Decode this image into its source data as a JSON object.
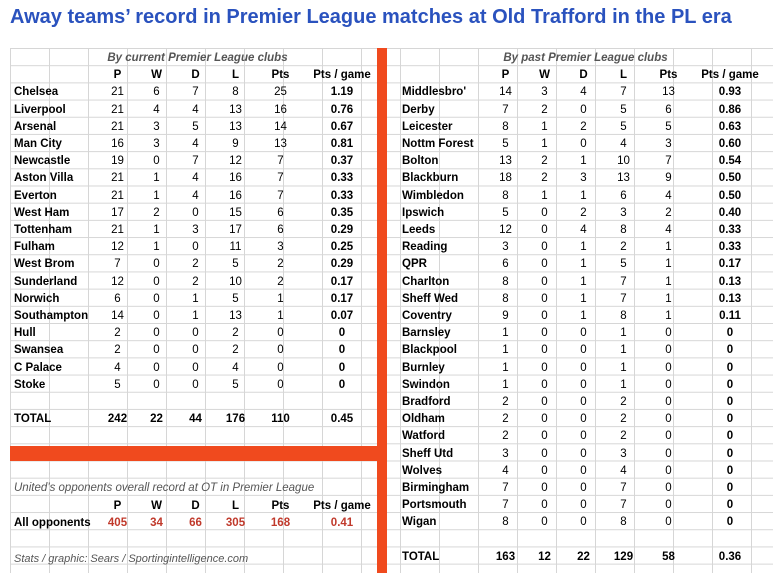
{
  "title": "Away teams’ record in Premier League matches at Old Trafford in the PL era",
  "headers": [
    "P",
    "W",
    "D",
    "L",
    "Pts",
    "Pts / game"
  ],
  "current": {
    "subtitle": "By current Premier League clubs",
    "rows": [
      [
        "Chelsea",
        "21",
        "6",
        "7",
        "8",
        "25",
        "1.19"
      ],
      [
        "Liverpool",
        "21",
        "4",
        "4",
        "13",
        "16",
        "0.76"
      ],
      [
        "Arsenal",
        "21",
        "3",
        "5",
        "13",
        "14",
        "0.67"
      ],
      [
        "Man City",
        "16",
        "3",
        "4",
        "9",
        "13",
        "0.81"
      ],
      [
        "Newcastle",
        "19",
        "0",
        "7",
        "12",
        "7",
        "0.37"
      ],
      [
        "Aston Villa",
        "21",
        "1",
        "4",
        "16",
        "7",
        "0.33"
      ],
      [
        "Everton",
        "21",
        "1",
        "4",
        "16",
        "7",
        "0.33"
      ],
      [
        "West Ham",
        "17",
        "2",
        "0",
        "15",
        "6",
        "0.35"
      ],
      [
        "Tottenham",
        "21",
        "1",
        "3",
        "17",
        "6",
        "0.29"
      ],
      [
        "Fulham",
        "12",
        "1",
        "0",
        "11",
        "3",
        "0.25"
      ],
      [
        "West Brom",
        "7",
        "0",
        "2",
        "5",
        "2",
        "0.29"
      ],
      [
        "Sunderland",
        "12",
        "0",
        "2",
        "10",
        "2",
        "0.17"
      ],
      [
        "Norwich",
        "6",
        "0",
        "1",
        "5",
        "1",
        "0.17"
      ],
      [
        "Southampton",
        "14",
        "0",
        "1",
        "13",
        "1",
        "0.07"
      ],
      [
        "Hull",
        "2",
        "0",
        "0",
        "2",
        "0",
        "0"
      ],
      [
        "Swansea",
        "2",
        "0",
        "0",
        "2",
        "0",
        "0"
      ],
      [
        "C Palace",
        "4",
        "0",
        "0",
        "4",
        "0",
        "0"
      ],
      [
        "Stoke",
        "5",
        "0",
        "0",
        "5",
        "0",
        "0"
      ]
    ],
    "total": [
      "TOTAL",
      "242",
      "22",
      "44",
      "176",
      "110",
      "0.45"
    ]
  },
  "past": {
    "subtitle": "By past Premier League clubs",
    "rows": [
      [
        "Middlesbro'",
        "14",
        "3",
        "4",
        "7",
        "13",
        "0.93"
      ],
      [
        "Derby",
        "7",
        "2",
        "0",
        "5",
        "6",
        "0.86"
      ],
      [
        "Leicester",
        "8",
        "1",
        "2",
        "5",
        "5",
        "0.63"
      ],
      [
        "Nottm Forest",
        "5",
        "1",
        "0",
        "4",
        "3",
        "0.60"
      ],
      [
        "Bolton",
        "13",
        "2",
        "1",
        "10",
        "7",
        "0.54"
      ],
      [
        "Blackburn",
        "18",
        "2",
        "3",
        "13",
        "9",
        "0.50"
      ],
      [
        "Wimbledon",
        "8",
        "1",
        "1",
        "6",
        "4",
        "0.50"
      ],
      [
        "Ipswich",
        "5",
        "0",
        "2",
        "3",
        "2",
        "0.40"
      ],
      [
        "Leeds",
        "12",
        "0",
        "4",
        "8",
        "4",
        "0.33"
      ],
      [
        "Reading",
        "3",
        "0",
        "1",
        "2",
        "1",
        "0.33"
      ],
      [
        "QPR",
        "6",
        "0",
        "1",
        "5",
        "1",
        "0.17"
      ],
      [
        "Charlton",
        "8",
        "0",
        "1",
        "7",
        "1",
        "0.13"
      ],
      [
        "Sheff Wed",
        "8",
        "0",
        "1",
        "7",
        "1",
        "0.13"
      ],
      [
        "Coventry",
        "9",
        "0",
        "1",
        "8",
        "1",
        "0.11"
      ],
      [
        "Barnsley",
        "1",
        "0",
        "0",
        "1",
        "0",
        "0"
      ],
      [
        "Blackpool",
        "1",
        "0",
        "0",
        "1",
        "0",
        "0"
      ],
      [
        "Burnley",
        "1",
        "0",
        "0",
        "1",
        "0",
        "0"
      ],
      [
        "Swindon",
        "1",
        "0",
        "0",
        "1",
        "0",
        "0"
      ],
      [
        "Bradford",
        "2",
        "0",
        "0",
        "2",
        "0",
        "0"
      ],
      [
        "Oldham",
        "2",
        "0",
        "0",
        "2",
        "0",
        "0"
      ],
      [
        "Watford",
        "2",
        "0",
        "0",
        "2",
        "0",
        "0"
      ],
      [
        "Sheff Utd",
        "3",
        "0",
        "0",
        "3",
        "0",
        "0"
      ],
      [
        "Wolves",
        "4",
        "0",
        "0",
        "4",
        "0",
        "0"
      ],
      [
        "Birmingham",
        "7",
        "0",
        "0",
        "7",
        "0",
        "0"
      ],
      [
        "Portsmouth",
        "7",
        "0",
        "0",
        "7",
        "0",
        "0"
      ],
      [
        "Wigan",
        "8",
        "0",
        "0",
        "8",
        "0",
        "0"
      ]
    ],
    "total": [
      "TOTAL",
      "163",
      "12",
      "22",
      "129",
      "58",
      "0.36"
    ]
  },
  "opponents": {
    "subtitle": "United’s opponents overall record at OT in Premier League",
    "row": [
      "All opponents",
      "405",
      "34",
      "66",
      "305",
      "168",
      "0.41"
    ]
  },
  "credit": "Stats / graphic: Sears / Sportingintelligence.com"
}
